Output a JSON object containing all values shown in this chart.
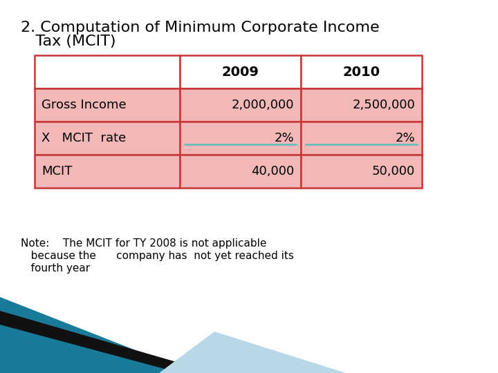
{
  "title_line1": "2. Computation of Minimum Corporate Income",
  "title_line2": "   Tax (MCIT)",
  "title_fontsize": 16,
  "title_color": "#000000",
  "background_color": "#ffffff",
  "table": {
    "headers": [
      "",
      "2009",
      "2010"
    ],
    "rows": [
      [
        "Gross Income",
        "2,000,000",
        "2,500,000"
      ],
      [
        "X   MCIT  rate",
        "2%",
        "2%"
      ],
      [
        "MCIT",
        "40,000",
        "50,000"
      ]
    ],
    "header_bg": "#ffffff",
    "cell_bg": "#f2b8b8",
    "border_color": "#cc3333",
    "text_color": "#000000",
    "header_fontsize": 14,
    "cell_fontsize": 13,
    "underline_color": "#5bbcbf"
  },
  "note_lines": [
    "Note:    The MCIT for TY 2008 is not applicable",
    "   because the      company has  not yet reached its",
    "   fourth year"
  ],
  "note_fontsize": 11,
  "note_color": "#000000",
  "bottom_shapes": {
    "teal": "#1a7a9a",
    "black": "#111111",
    "light_blue": "#b8d8e8"
  }
}
